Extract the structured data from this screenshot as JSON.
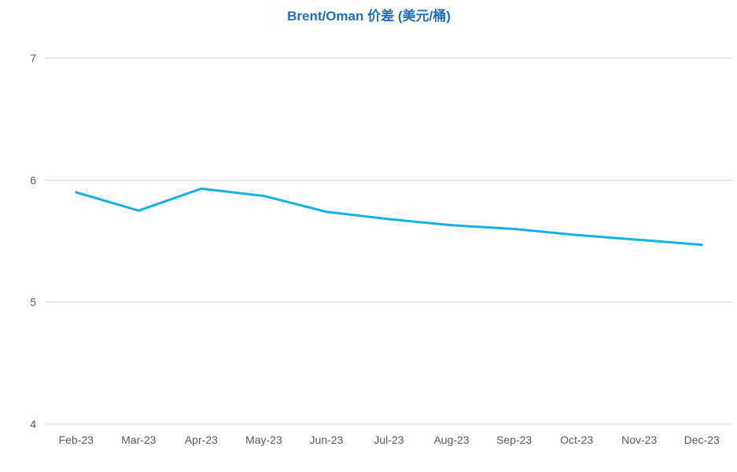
{
  "chart_data": {
    "type": "line",
    "title": "Brent/Oman 价差 (美元/桶)",
    "xlabel": "",
    "ylabel": "",
    "categories": [
      "Feb-23",
      "Mar-23",
      "Apr-23",
      "May-23",
      "Jun-23",
      "Jul-23",
      "Aug-23",
      "Sep-23",
      "Oct-23",
      "Nov-23",
      "Dec-23"
    ],
    "series": [
      {
        "values": [
          5.9,
          5.75,
          5.93,
          5.87,
          5.74,
          5.68,
          5.63,
          5.6,
          5.55,
          5.51,
          5.47
        ]
      }
    ],
    "ylim": [
      4,
      7
    ],
    "yticks": [
      4,
      5,
      6,
      7
    ],
    "grid": true,
    "legend": "none",
    "colors": {
      "line": "#16b0e8",
      "title": "#1f6fb5"
    }
  }
}
